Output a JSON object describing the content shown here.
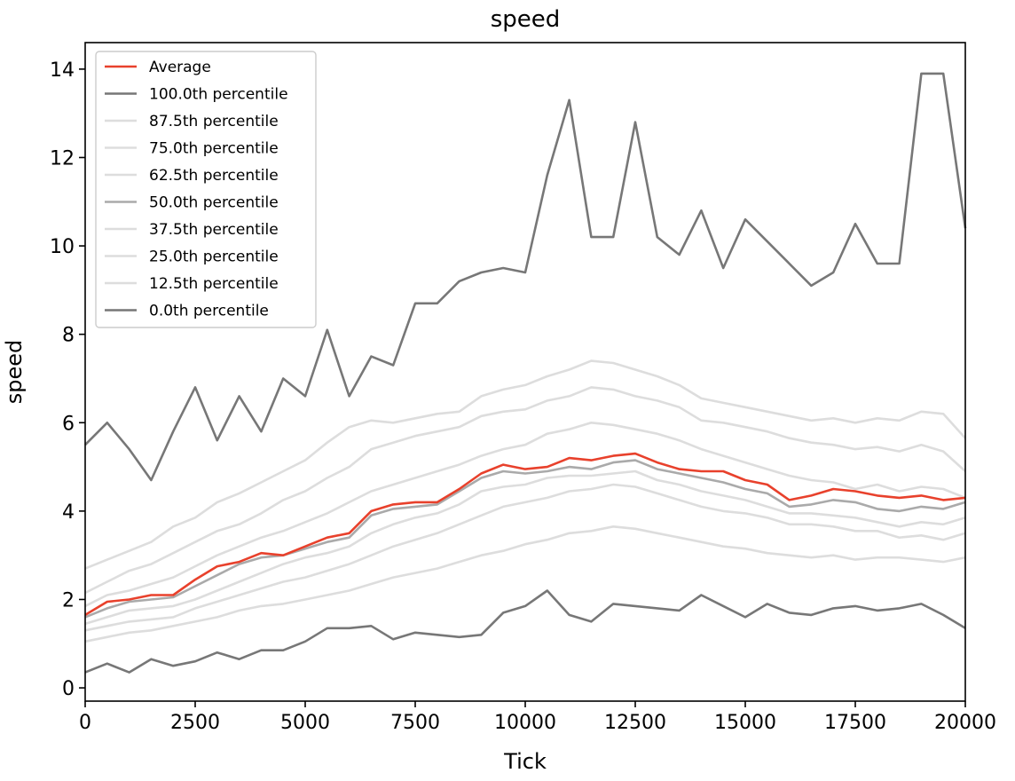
{
  "chart_data": {
    "type": "line",
    "title": "speed",
    "xlabel": "Tick",
    "ylabel": "speed",
    "xlim": [
      0,
      20000
    ],
    "ylim": [
      -0.3,
      14.6
    ],
    "xticks": [
      0,
      2500,
      5000,
      7500,
      10000,
      12500,
      15000,
      17500,
      20000
    ],
    "xtick_labels": [
      "0",
      "2500",
      "5000",
      "7500",
      "10000",
      "12500",
      "15000",
      "17500",
      "20000"
    ],
    "yticks": [
      0,
      2,
      4,
      6,
      8,
      10,
      12,
      14
    ],
    "ytick_labels": [
      "0",
      "2",
      "4",
      "6",
      "8",
      "10",
      "12",
      "14"
    ],
    "grid": false,
    "legend_position": "top-left",
    "x": [
      0,
      500,
      1000,
      1500,
      2000,
      2500,
      3000,
      3500,
      4000,
      4500,
      5000,
      5500,
      6000,
      6500,
      7000,
      7500,
      8000,
      8500,
      9000,
      9500,
      10000,
      10500,
      11000,
      11500,
      12000,
      12500,
      13000,
      13500,
      14000,
      14500,
      15000,
      15500,
      16000,
      16500,
      17000,
      17500,
      18000,
      18500,
      19000,
      19500,
      20000
    ],
    "series": [
      {
        "name": "Average",
        "color": "#e8412c",
        "width": 2.6,
        "values": [
          1.65,
          1.95,
          2.0,
          2.1,
          2.1,
          2.45,
          2.75,
          2.85,
          3.05,
          3.0,
          3.2,
          3.4,
          3.5,
          4.0,
          4.15,
          4.2,
          4.2,
          4.5,
          4.85,
          5.05,
          4.95,
          5.0,
          5.2,
          5.15,
          5.25,
          5.3,
          5.1,
          4.95,
          4.9,
          4.9,
          4.7,
          4.6,
          4.25,
          4.35,
          4.5,
          4.45,
          4.35,
          4.3,
          4.35,
          4.25,
          4.3
        ]
      },
      {
        "name": "100.0th percentile",
        "color": "#777777",
        "width": 2.6,
        "values": [
          5.5,
          6.0,
          5.4,
          4.7,
          5.8,
          6.8,
          5.6,
          6.6,
          5.8,
          7.0,
          6.6,
          8.1,
          6.6,
          7.5,
          7.3,
          8.7,
          8.7,
          9.2,
          9.4,
          9.5,
          9.4,
          11.6,
          13.3,
          10.2,
          10.2,
          12.8,
          10.2,
          9.8,
          10.8,
          9.5,
          10.6,
          10.1,
          9.6,
          9.1,
          9.4,
          10.5,
          9.6,
          9.6,
          13.9,
          13.9,
          10.4
        ]
      },
      {
        "name": "87.5th percentile",
        "color": "#dddddd",
        "width": 2.6,
        "values": [
          2.7,
          2.9,
          3.1,
          3.3,
          3.65,
          3.85,
          4.2,
          4.4,
          4.65,
          4.9,
          5.15,
          5.55,
          5.9,
          6.05,
          6.0,
          6.1,
          6.2,
          6.25,
          6.6,
          6.75,
          6.85,
          7.05,
          7.2,
          7.4,
          7.35,
          7.2,
          7.05,
          6.85,
          6.55,
          6.45,
          6.35,
          6.25,
          6.15,
          6.05,
          6.1,
          6.0,
          6.1,
          6.05,
          6.25,
          6.2,
          5.65
        ]
      },
      {
        "name": "75.0th percentile",
        "color": "#dddddd",
        "width": 2.6,
        "values": [
          2.15,
          2.4,
          2.65,
          2.8,
          3.05,
          3.3,
          3.55,
          3.7,
          3.95,
          4.25,
          4.45,
          4.75,
          5.0,
          5.4,
          5.55,
          5.7,
          5.8,
          5.9,
          6.15,
          6.25,
          6.3,
          6.5,
          6.6,
          6.8,
          6.75,
          6.6,
          6.5,
          6.35,
          6.05,
          6.0,
          5.9,
          5.8,
          5.65,
          5.55,
          5.5,
          5.4,
          5.45,
          5.35,
          5.5,
          5.35,
          4.9
        ]
      },
      {
        "name": "62.5th percentile",
        "color": "#dddddd",
        "width": 2.6,
        "values": [
          1.85,
          2.1,
          2.2,
          2.35,
          2.5,
          2.75,
          3.0,
          3.2,
          3.4,
          3.55,
          3.75,
          3.95,
          4.2,
          4.45,
          4.6,
          4.75,
          4.9,
          5.05,
          5.25,
          5.4,
          5.5,
          5.75,
          5.85,
          6.0,
          5.95,
          5.85,
          5.75,
          5.6,
          5.4,
          5.25,
          5.1,
          4.95,
          4.8,
          4.7,
          4.65,
          4.5,
          4.6,
          4.45,
          4.55,
          4.5,
          4.3
        ]
      },
      {
        "name": "50.0th percentile",
        "color": "#aaaaaa",
        "width": 2.6,
        "values": [
          1.6,
          1.8,
          1.95,
          2.0,
          2.05,
          2.3,
          2.55,
          2.8,
          2.95,
          3.0,
          3.15,
          3.3,
          3.4,
          3.9,
          4.05,
          4.1,
          4.15,
          4.45,
          4.75,
          4.9,
          4.85,
          4.9,
          5.0,
          4.95,
          5.1,
          5.15,
          4.95,
          4.85,
          4.75,
          4.65,
          4.5,
          4.4,
          4.1,
          4.15,
          4.25,
          4.2,
          4.05,
          4.0,
          4.1,
          4.05,
          4.2
        ]
      },
      {
        "name": "37.5th percentile",
        "color": "#dddddd",
        "width": 2.6,
        "values": [
          1.45,
          1.6,
          1.75,
          1.8,
          1.85,
          2.0,
          2.2,
          2.4,
          2.6,
          2.8,
          2.95,
          3.05,
          3.2,
          3.5,
          3.7,
          3.85,
          3.95,
          4.15,
          4.45,
          4.55,
          4.6,
          4.75,
          4.8,
          4.8,
          4.85,
          4.9,
          4.7,
          4.6,
          4.45,
          4.35,
          4.25,
          4.1,
          3.95,
          3.95,
          3.9,
          3.85,
          3.75,
          3.65,
          3.75,
          3.7,
          3.85
        ]
      },
      {
        "name": "25.0th percentile",
        "color": "#dddddd",
        "width": 2.6,
        "values": [
          1.3,
          1.4,
          1.5,
          1.55,
          1.6,
          1.8,
          1.95,
          2.1,
          2.25,
          2.4,
          2.5,
          2.65,
          2.8,
          3.0,
          3.2,
          3.35,
          3.5,
          3.7,
          3.9,
          4.1,
          4.2,
          4.3,
          4.45,
          4.5,
          4.6,
          4.55,
          4.4,
          4.25,
          4.1,
          4.0,
          3.95,
          3.85,
          3.7,
          3.7,
          3.65,
          3.55,
          3.55,
          3.4,
          3.45,
          3.35,
          3.5
        ]
      },
      {
        "name": "12.5th percentile",
        "color": "#dddddd",
        "width": 2.6,
        "values": [
          1.05,
          1.15,
          1.25,
          1.3,
          1.4,
          1.5,
          1.6,
          1.75,
          1.85,
          1.9,
          2.0,
          2.1,
          2.2,
          2.35,
          2.5,
          2.6,
          2.7,
          2.85,
          3.0,
          3.1,
          3.25,
          3.35,
          3.5,
          3.55,
          3.65,
          3.6,
          3.5,
          3.4,
          3.3,
          3.2,
          3.15,
          3.05,
          3.0,
          2.95,
          3.0,
          2.9,
          2.95,
          2.95,
          2.9,
          2.85,
          2.95
        ]
      },
      {
        "name": "0.0th percentile",
        "color": "#777777",
        "width": 2.6,
        "values": [
          0.35,
          0.55,
          0.35,
          0.65,
          0.5,
          0.6,
          0.8,
          0.65,
          0.85,
          0.85,
          1.05,
          1.35,
          1.35,
          1.4,
          1.1,
          1.25,
          1.2,
          1.15,
          1.2,
          1.7,
          1.85,
          2.2,
          1.65,
          1.5,
          1.9,
          1.85,
          1.8,
          1.75,
          2.1,
          1.85,
          1.6,
          1.9,
          1.7,
          1.65,
          1.8,
          1.85,
          1.75,
          1.8,
          1.9,
          1.65,
          1.35
        ]
      }
    ]
  }
}
